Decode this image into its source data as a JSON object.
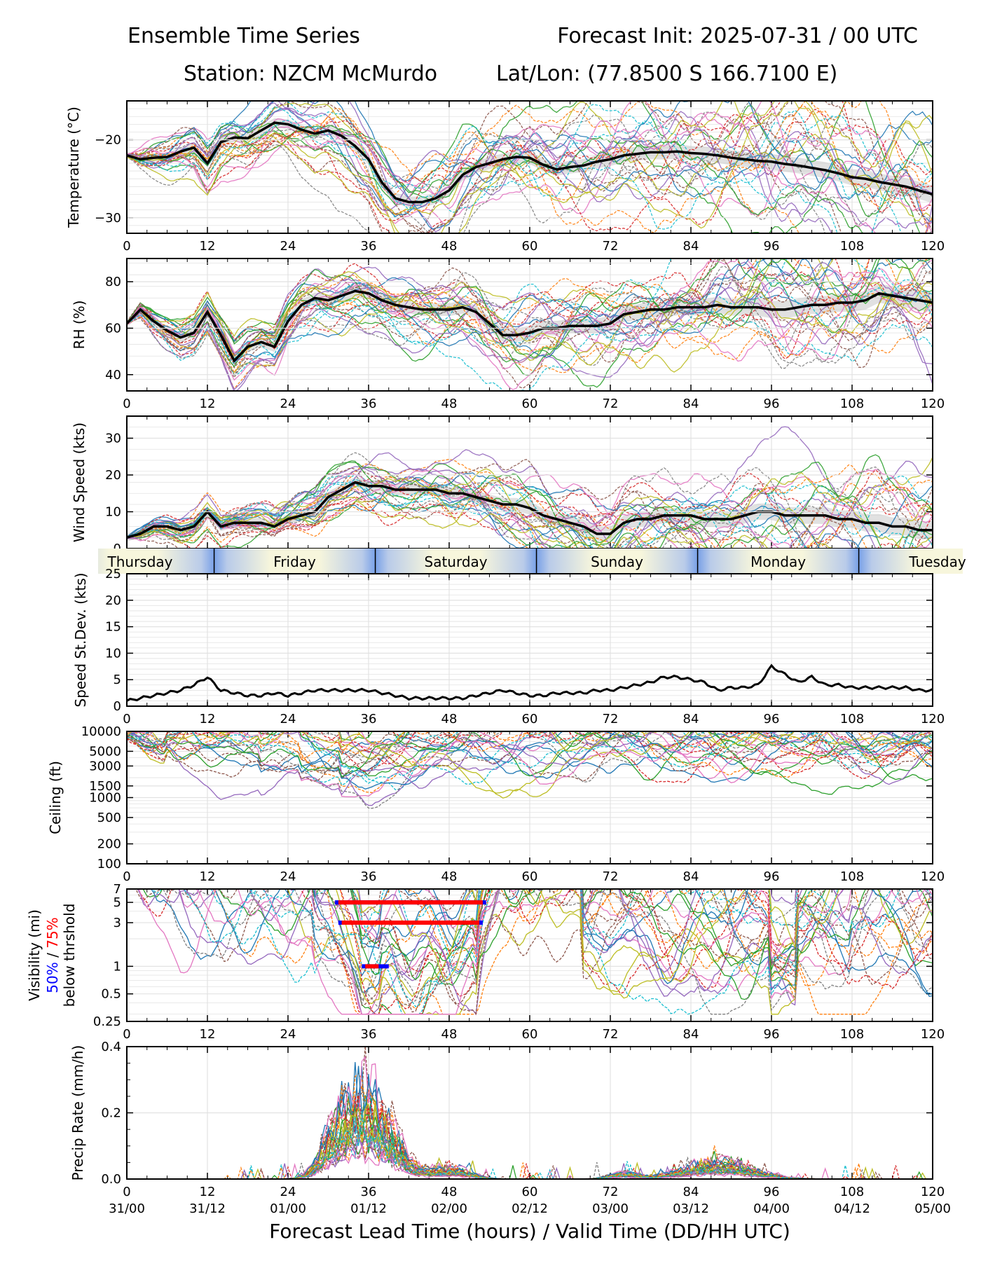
{
  "header": {
    "title_left": "Ensemble Time Series",
    "title_right": "Forecast Init: 2025-07-31 / 00 UTC",
    "station": "Station: NZCM McMurdo",
    "latlon": "Lat/Lon: (77.8500 S 166.7100 E)"
  },
  "xaxis": {
    "lead_ticks": [
      "0",
      "12",
      "24",
      "36",
      "48",
      "60",
      "72",
      "84",
      "96",
      "108",
      "120"
    ],
    "valid_ticks": [
      "31/00",
      "31/12",
      "01/00",
      "01/12",
      "02/00",
      "02/12",
      "03/00",
      "03/12",
      "04/00",
      "04/12",
      "05/00"
    ],
    "xlabel": "Forecast Lead Time (hours) / Valid Time (DD/HH UTC)",
    "xlim": [
      0,
      120
    ]
  },
  "day_band": {
    "labels": [
      "Thursday",
      "Friday",
      "Saturday",
      "Sunday",
      "Monday",
      "Tuesday"
    ],
    "colors": {
      "light": "#f7f6dc",
      "blue": "#78a0e8"
    }
  },
  "colors": {
    "mean": "#000000",
    "spread": "#c8c8c8",
    "grid": "#e2e2e2",
    "vis_50": "#0000ff",
    "vis_75": "#ff0000",
    "members": [
      "#1f77b4",
      "#ff7f0e",
      "#2ca02c",
      "#d62728",
      "#9467bd",
      "#8c564b",
      "#e377c2",
      "#7f7f7f",
      "#bcbd22",
      "#17becf"
    ]
  },
  "chart_data": [
    {
      "type": "line",
      "ylabel": "Temperature (°C)",
      "yticks": [
        "−20",
        "−30"
      ],
      "ylim": [
        -32,
        -15
      ],
      "x": [
        0,
        2,
        4,
        6,
        8,
        10,
        12,
        14,
        16,
        18,
        20,
        22,
        24,
        26,
        28,
        30,
        32,
        34,
        36,
        38,
        40,
        42,
        44,
        46,
        48,
        50,
        52,
        54,
        56,
        58,
        60,
        62,
        64,
        66,
        68,
        70,
        72,
        74,
        76,
        78,
        80,
        82,
        84,
        86,
        88,
        90,
        92,
        94,
        96,
        98,
        100,
        102,
        104,
        106,
        108,
        110,
        112,
        114,
        116,
        118,
        120
      ],
      "series": [
        {
          "role": "mean",
          "values": [
            -22,
            -22.5,
            -22.3,
            -22.2,
            -21.5,
            -21,
            -23,
            -20.3,
            -19.7,
            -19.8,
            -18.8,
            -17.8,
            -18,
            -18.7,
            -19.2,
            -18.8,
            -19.5,
            -20.8,
            -22.5,
            -25.5,
            -27.5,
            -28,
            -28,
            -27.5,
            -26.5,
            -24.5,
            -23.5,
            -23,
            -22.5,
            -22.2,
            -22.3,
            -23.2,
            -23.8,
            -23.5,
            -23.3,
            -22.8,
            -22.5,
            -22,
            -21.8,
            -21.6,
            -21.6,
            -21.5,
            -21.7,
            -21.8,
            -22,
            -22.3,
            -22.5,
            -22.7,
            -22.8,
            -23.1,
            -23.3,
            -23.6,
            -23.9,
            -24.3,
            -24.8,
            -25,
            -25.4,
            -25.7,
            -26,
            -26.5,
            -27
          ]
        }
      ],
      "member_count": 30
    },
    {
      "type": "line",
      "ylabel": "RH (%)",
      "yticks": [
        "80",
        "60",
        "40"
      ],
      "ylim": [
        33,
        90
      ],
      "x": [
        0,
        2,
        4,
        6,
        8,
        10,
        12,
        14,
        16,
        18,
        20,
        22,
        24,
        26,
        28,
        30,
        32,
        34,
        36,
        38,
        40,
        42,
        44,
        46,
        48,
        50,
        52,
        54,
        56,
        58,
        60,
        62,
        64,
        66,
        68,
        70,
        72,
        74,
        76,
        78,
        80,
        82,
        84,
        86,
        88,
        90,
        92,
        94,
        96,
        98,
        100,
        102,
        104,
        106,
        108,
        110,
        112,
        114,
        116,
        118,
        120
      ],
      "series": [
        {
          "role": "mean",
          "values": [
            62,
            68,
            63,
            59,
            56,
            58,
            67,
            57,
            46,
            52,
            54,
            52,
            63,
            70,
            73,
            72,
            74,
            76,
            75,
            72,
            70,
            69,
            68,
            68,
            68,
            69,
            67,
            62,
            57,
            57,
            58,
            60,
            60,
            61,
            61,
            61,
            62,
            66,
            67,
            68,
            68,
            69,
            69,
            69,
            70,
            69,
            69,
            69,
            68,
            68,
            69,
            70,
            70,
            71,
            71,
            72,
            75,
            74,
            73,
            72,
            71
          ]
        }
      ],
      "member_count": 30
    },
    {
      "type": "line",
      "ylabel": "Wind Speed (kts)",
      "yticks": [
        "30",
        "20",
        "10",
        "0"
      ],
      "ylim": [
        0,
        36
      ],
      "x": [
        0,
        2,
        4,
        6,
        8,
        10,
        12,
        14,
        16,
        18,
        20,
        22,
        24,
        26,
        28,
        30,
        32,
        34,
        36,
        38,
        40,
        42,
        44,
        46,
        48,
        50,
        52,
        54,
        56,
        58,
        60,
        62,
        64,
        66,
        68,
        70,
        72,
        74,
        76,
        78,
        80,
        82,
        84,
        86,
        88,
        90,
        92,
        94,
        96,
        98,
        100,
        102,
        104,
        106,
        108,
        110,
        112,
        114,
        116,
        118,
        120
      ],
      "series": [
        {
          "role": "mean",
          "values": [
            3,
            4,
            6,
            6,
            5,
            6,
            10,
            6,
            7,
            7,
            7,
            6,
            8,
            9,
            10,
            14,
            16,
            18,
            17,
            17,
            16,
            16,
            16,
            16,
            15,
            15,
            14,
            13,
            12,
            12,
            11,
            9,
            8,
            7,
            6,
            4,
            4,
            7,
            8,
            8,
            9,
            9,
            9,
            8,
            8,
            8,
            9,
            10,
            10,
            9,
            9,
            9,
            9,
            8,
            8,
            7,
            7,
            6,
            6,
            5,
            5
          ]
        }
      ],
      "member_count": 30
    },
    {
      "type": "line",
      "ylabel": "Speed St.Dev. (kts)",
      "yticks": [
        "25",
        "20",
        "15",
        "10",
        "5",
        "0"
      ],
      "ylim": [
        0,
        25
      ],
      "x": [
        0,
        2,
        4,
        6,
        8,
        10,
        12,
        14,
        16,
        18,
        20,
        22,
        24,
        26,
        28,
        30,
        32,
        34,
        36,
        38,
        40,
        42,
        44,
        46,
        48,
        50,
        52,
        54,
        56,
        58,
        60,
        62,
        64,
        66,
        68,
        70,
        72,
        74,
        76,
        78,
        80,
        82,
        84,
        86,
        88,
        90,
        92,
        94,
        96,
        98,
        100,
        102,
        104,
        106,
        108,
        110,
        112,
        114,
        116,
        118,
        120
      ],
      "series": [
        {
          "role": "stdev",
          "values": [
            1,
            1.5,
            2,
            2.5,
            3,
            4,
            5.5,
            3,
            2.5,
            2,
            2,
            2.5,
            2,
            2.5,
            3,
            3,
            3,
            3,
            3,
            2.5,
            2,
            1.5,
            1.5,
            1.5,
            1.5,
            1.5,
            2,
            2.5,
            3,
            2.5,
            2,
            2,
            2.5,
            2.5,
            2.5,
            3,
            3,
            3.5,
            4,
            4.5,
            5.5,
            5.5,
            5,
            4.5,
            3,
            3.5,
            3.5,
            4,
            7.5,
            6,
            4.5,
            5.5,
            4,
            4,
            3.5,
            3.5,
            3.5,
            3.5,
            3.5,
            3,
            3
          ]
        }
      ]
    },
    {
      "type": "line",
      "ylabel": "Ceiling (ft)",
      "yscale": "log",
      "yticks": [
        "10000",
        "5000",
        "3000",
        "1500",
        "1000",
        "500",
        "200",
        "100"
      ],
      "ylim": [
        100,
        10000
      ],
      "member_count": 30
    },
    {
      "type": "line",
      "ylabel": "Visibility (mi)",
      "ylabel_50": "50%",
      "ylabel_sep": " / ",
      "ylabel_75": "75%",
      "ylabel_line3": "below thrshold",
      "yscale": "log",
      "yticks": [
        "7",
        "5",
        "3",
        "1",
        "0.5",
        "0.25"
      ],
      "ylim": [
        0.25,
        7
      ],
      "threshold_bars": [
        {
          "threshold": 5,
          "p50": [
            31,
            53.5
          ],
          "p75": [
            31.5,
            53
          ]
        },
        {
          "threshold": 3,
          "p50": [
            31.5,
            53
          ],
          "p75": [
            32,
            52.5
          ]
        },
        {
          "threshold": 1,
          "p50": [
            35,
            39
          ],
          "p75": [
            35.5,
            37.5
          ]
        }
      ],
      "member_count": 30
    },
    {
      "type": "line",
      "ylabel": "Precip Rate (mm/h)",
      "yticks": [
        "0.4",
        "0.2",
        "0.0"
      ],
      "ylim": [
        0,
        0.4
      ],
      "member_count": 30
    }
  ]
}
